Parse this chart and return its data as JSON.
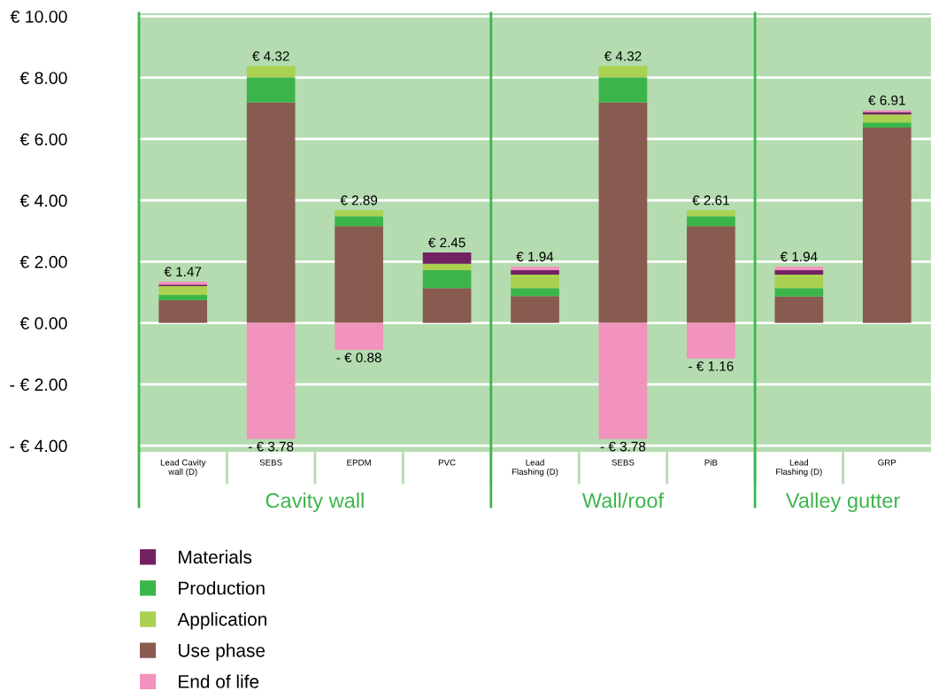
{
  "chart_data": {
    "type": "bar",
    "stacked": true,
    "categories": [
      "Lead Cavity\nwall (D)",
      "SEBS",
      "EPDM",
      "PVC",
      "Lead\nFlashing (D)",
      "SEBS",
      "PiB",
      "Lead\nFlashing (D)",
      "GRP"
    ],
    "series": [
      {
        "name": "Use phase",
        "color": "#895a4f",
        "values": [
          0.74,
          7.2,
          3.16,
          1.14,
          0.88,
          7.2,
          3.16,
          0.86,
          6.37
        ]
      },
      {
        "name": "Production",
        "color": "#3bb54a",
        "values": [
          0.17,
          0.81,
          0.32,
          0.58,
          0.26,
          0.81,
          0.32,
          0.28,
          0.17
        ]
      },
      {
        "name": "Application",
        "color": "#abd152",
        "values": [
          0.29,
          0.37,
          0.2,
          0.21,
          0.44,
          0.37,
          0.2,
          0.44,
          0.26
        ]
      },
      {
        "name": "Materials",
        "color": "#722262",
        "values": [
          0.05,
          0,
          0,
          0.37,
          0.14,
          0,
          0,
          0.14,
          0.08
        ]
      },
      {
        "name": "End of life",
        "color": "#f193bd",
        "values": [
          0.1,
          -3.78,
          -0.88,
          0,
          0.12,
          -3.78,
          -1.16,
          0.12,
          0.06
        ],
        "value_labels": [
          null,
          "- € 3.78",
          "- € 0.88",
          null,
          null,
          "- € 3.78",
          "- € 1.16",
          null,
          null
        ]
      }
    ],
    "annotations": [
      "Cavity wall",
      "Wall/roof",
      "Valley gutter",
      "€ 1.47",
      "€ 4.32",
      "€ 2.89",
      "€ 2.45",
      "€ 1.94",
      "€ 4.32",
      "€ 2.61",
      "€ 1.94",
      "€ 6.91"
    ],
    "ylim": [
      -4.2,
      10.1
    ],
    "yticks": [
      {
        "value": -4,
        "label": "- € 4.00"
      },
      {
        "value": -2,
        "label": "- € 2.00"
      },
      {
        "value": 0,
        "label": "€ 0.00"
      },
      {
        "value": 2,
        "label": "€ 2.00"
      },
      {
        "value": 4,
        "label": "€ 4.00"
      },
      {
        "value": 6,
        "label": "€ 6.00"
      },
      {
        "value": 8,
        "label": "€ 8.00"
      },
      {
        "value": 10,
        "label": "€ 10.00"
      }
    ],
    "grid": "y",
    "legend": "bottom"
  }
}
